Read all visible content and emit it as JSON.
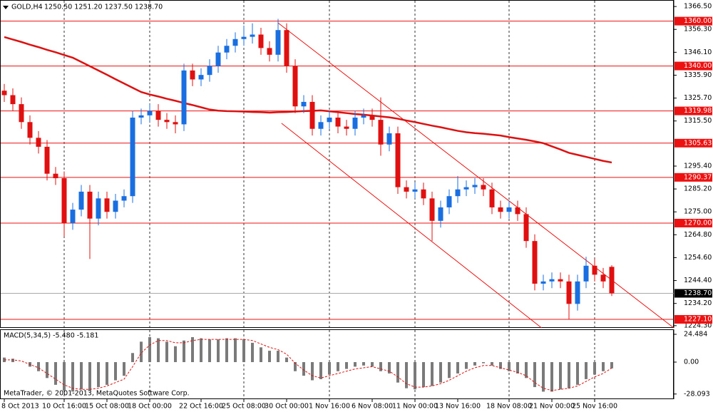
{
  "chart_data": [
    {
      "type": "candlestick",
      "title": "GOLD,H4",
      "ohlc_text": "1250.50 1251.20 1237.50 1238.70",
      "categories": [
        "8 Oct 2013",
        null,
        null,
        null,
        null,
        null,
        null,
        "10 Oct 16:00",
        null,
        null,
        null,
        null,
        "15 Oct 08:00",
        null,
        null,
        null,
        null,
        "18 Oct 00:00",
        null,
        null,
        null,
        null,
        null,
        "22 Oct 16:00",
        null,
        null,
        null,
        null,
        "25 Oct 08:00",
        null,
        null,
        null,
        null,
        "30 Oct 00:00",
        null,
        null,
        null,
        null,
        "1 Nov 16:00",
        null,
        null,
        null,
        null,
        "6 Nov 08:00",
        null,
        null,
        null,
        null,
        "11 Nov 00:00",
        null,
        null,
        null,
        null,
        "13 Nov 16:00",
        null,
        null,
        null,
        null,
        null,
        "18 Nov 08:00",
        null,
        null,
        null,
        null,
        "21 Nov 00:00",
        null,
        null,
        null,
        null,
        "25 Nov 16:00",
        null,
        null
      ],
      "open": [
        1329,
        1327,
        1323,
        1315,
        1308,
        1304,
        1292,
        1290,
        1270,
        1276,
        1284,
        1272,
        1281,
        1275,
        1280,
        1282,
        1317,
        1318,
        1320,
        1316,
        1315,
        1314,
        1338,
        1334,
        1336,
        1340,
        1346,
        1349,
        1352,
        1353,
        1354,
        1348,
        1345,
        1356,
        1340,
        1322,
        1324,
        1312,
        1315,
        1317,
        1313,
        1312,
        1317,
        1318,
        1316,
        1305,
        1310,
        1286,
        1284,
        1285,
        1281,
        1271,
        1277,
        1282,
        1285,
        1286,
        1287,
        1285,
        1277,
        1275,
        1277,
        1274,
        1262,
        1243,
        1244,
        1245,
        1244,
        1234,
        1244,
        1251,
        1247,
        1250.5
      ],
      "high": [
        1332,
        1330,
        1326,
        1318,
        1311,
        1307,
        1295,
        1293,
        1279,
        1287,
        1287,
        1284,
        1284,
        1283,
        1285,
        1320,
        1321,
        1323,
        1323,
        1319,
        1318,
        1341,
        1341,
        1339,
        1343,
        1349,
        1352,
        1355,
        1358,
        1359,
        1357,
        1351,
        1361,
        1359,
        1343,
        1327,
        1327,
        1318,
        1320,
        1320,
        1316,
        1320,
        1321,
        1321,
        1326,
        1313,
        1313,
        1289,
        1288,
        1288,
        1284,
        1280,
        1285,
        1291,
        1289,
        1290,
        1290,
        1288,
        1280,
        1280,
        1280,
        1277,
        1265,
        1247,
        1248,
        1248,
        1247,
        1247,
        1255,
        1254,
        1250,
        1251.2
      ],
      "low": [
        1324,
        1320,
        1312,
        1305,
        1301,
        1289,
        1287,
        1264,
        1267,
        1273,
        1254,
        1269,
        1272,
        1272,
        1277,
        1279,
        1314,
        1315,
        1313,
        1312,
        1310,
        1311,
        1331,
        1331,
        1333,
        1337,
        1343,
        1346,
        1349,
        1350,
        1345,
        1342,
        1342,
        1337,
        1319,
        1319,
        1309,
        1309,
        1312,
        1310,
        1309,
        1309,
        1314,
        1313,
        1300,
        1302,
        1283,
        1281,
        1281,
        1278,
        1262,
        1268,
        1274,
        1279,
        1282,
        1283,
        1282,
        1274,
        1272,
        1272,
        1271,
        1259,
        1240,
        1240,
        1241,
        1241,
        1227,
        1231,
        1241,
        1244,
        1241,
        1237.5
      ],
      "close": [
        1327,
        1323,
        1315,
        1308,
        1304,
        1292,
        1290,
        1270,
        1276,
        1284,
        1272,
        1281,
        1275,
        1280,
        1282,
        1317,
        1318,
        1320,
        1316,
        1315,
        1314,
        1338,
        1334,
        1336,
        1340,
        1346,
        1349,
        1352,
        1353,
        1354,
        1348,
        1345,
        1356,
        1340,
        1322,
        1324,
        1312,
        1315,
        1317,
        1313,
        1312,
        1317,
        1318,
        1316,
        1305,
        1310,
        1286,
        1284,
        1285,
        1281,
        1271,
        1277,
        1282,
        1285,
        1286,
        1287,
        1285,
        1277,
        1275,
        1277,
        1274,
        1262,
        1243,
        1244,
        1245,
        1244,
        1234,
        1244,
        1251,
        1247,
        1244,
        1238.7
      ],
      "up_color": "#1a6fe0",
      "down_color": "#e01010",
      "ma": {
        "color": "#dd1111",
        "values": [
          1352.9,
          1351.8,
          1350.7,
          1349.5,
          1348.4,
          1347.2,
          1346.1,
          1344.9,
          1343.7,
          1341.8,
          1339.9,
          1338.0,
          1336.1,
          1334.1,
          1332.2,
          1330.3,
          1328.4,
          1327.3,
          1326.4,
          1325.4,
          1324.5,
          1323.5,
          1322.6,
          1321.6,
          1320.6,
          1320.1,
          1319.9,
          1319.8,
          1319.7,
          1319.5,
          1319.4,
          1319.2,
          1319.4,
          1319.5,
          1319.7,
          1319.9,
          1320.0,
          1320.2,
          1319.8,
          1319.4,
          1319.0,
          1318.6,
          1318.3,
          1317.9,
          1317.5,
          1317.1,
          1316.5,
          1315.7,
          1315.0,
          1314.2,
          1313.4,
          1312.7,
          1311.9,
          1311.1,
          1310.5,
          1310.1,
          1309.8,
          1309.4,
          1309.0,
          1308.3,
          1307.7,
          1307.1,
          1306.4,
          1305.6,
          1304.2,
          1302.8,
          1301.3,
          1300.4,
          1299.5,
          1298.6,
          1297.7,
          1297.0
        ]
      },
      "trendlines": [
        {
          "x": [
            32,
            78.25
          ],
          "y": [
            1359.2,
            1223.3
          ]
        },
        {
          "x": [
            32.4,
            62.8
          ],
          "y": [
            1314.5,
            1223.3
          ]
        }
      ],
      "levels": [
        {
          "value": 1360,
          "label": "1360.00"
        },
        {
          "value": 1340,
          "label": "1340.00"
        },
        {
          "value": 1319.98,
          "label": "1319.98"
        },
        {
          "value": 1305.63,
          "label": "1305.63"
        },
        {
          "value": 1290.37,
          "label": "1290.37"
        },
        {
          "value": 1270,
          "label": "1270.00"
        },
        {
          "value": 1227.1,
          "label": "1227.10"
        }
      ],
      "level_color": "#ee1111",
      "last": {
        "value": 1238.7,
        "label": "1238.70"
      },
      "ylim": [
        1223.3,
        1369.4
      ],
      "yticks": [
        {
          "value": 1366.5,
          "label": "1366.50"
        },
        {
          "value": 1356.3,
          "label": "1356.30"
        },
        {
          "value": 1346.1,
          "label": "1346.10"
        },
        {
          "value": 1335.9,
          "label": "1335.90"
        },
        {
          "value": 1325.7,
          "label": "1325.70"
        },
        {
          "value": 1315.5,
          "label": "1315.50"
        },
        {
          "value": 1295.4,
          "label": "1295.40"
        },
        {
          "value": 1285.2,
          "label": "1285.20"
        },
        {
          "value": 1275,
          "label": "1275.00"
        },
        {
          "value": 1264.8,
          "label": "1264.80"
        },
        {
          "value": 1254.6,
          "label": "1254.60"
        },
        {
          "value": 1244.4,
          "label": "1244.40"
        },
        {
          "value": 1234.2,
          "label": "1234.20"
        },
        {
          "value": 1224.3,
          "label": "1224.30"
        }
      ]
    },
    {
      "type": "macd",
      "title": "MACD(5,34,5) -5.480 -5.181",
      "series": [
        {
          "name": "MACD",
          "color": "#7a7a7a",
          "values": [
            4,
            3,
            0,
            -4,
            -8,
            -14,
            -20,
            -25,
            -26,
            -24,
            -25,
            -22,
            -20,
            -16,
            -12,
            8,
            18,
            22,
            21,
            18,
            14,
            19,
            22,
            21,
            20,
            20,
            21,
            21,
            20,
            17,
            13,
            10,
            10,
            4,
            -8,
            -12,
            -16,
            -15,
            -11,
            -8,
            -6,
            -4,
            -3,
            -4,
            -8,
            -10,
            -18,
            -23,
            -24,
            -22,
            -21,
            -18,
            -14,
            -10,
            -6,
            -3,
            -1,
            -3,
            -6,
            -8,
            -10,
            -14,
            -22,
            -26,
            -26,
            -24,
            -23,
            -20,
            -15,
            -11,
            -8,
            -5.48
          ]
        },
        {
          "name": "Signal",
          "color": "#e01010",
          "values": [
            2,
            2,
            1,
            -2,
            -5,
            -10,
            -15,
            -20,
            -23,
            -24,
            -24,
            -23,
            -21,
            -18,
            -15,
            -4,
            8,
            15,
            19,
            19,
            17,
            17,
            19,
            20,
            20,
            20,
            20,
            20,
            20,
            19,
            16,
            13,
            11,
            7,
            -1,
            -7,
            -12,
            -14,
            -12,
            -10,
            -8,
            -6,
            -5,
            -4,
            -6,
            -8,
            -13,
            -19,
            -22,
            -22,
            -21,
            -19,
            -16,
            -12,
            -8,
            -5,
            -3,
            -3,
            -5,
            -7,
            -9,
            -12,
            -18,
            -23,
            -25,
            -24,
            -23,
            -21,
            -17,
            -13,
            -10,
            -5.181
          ]
        }
      ],
      "ylim": [
        -32.0,
        28.25
      ],
      "yticks": [
        24.484,
        {
          "value": 0,
          "label": "0.00"
        },
        -28.093
      ]
    }
  ],
  "footer": "MetaTrader, © 2001-2013, MetaQuotes Software Corp."
}
